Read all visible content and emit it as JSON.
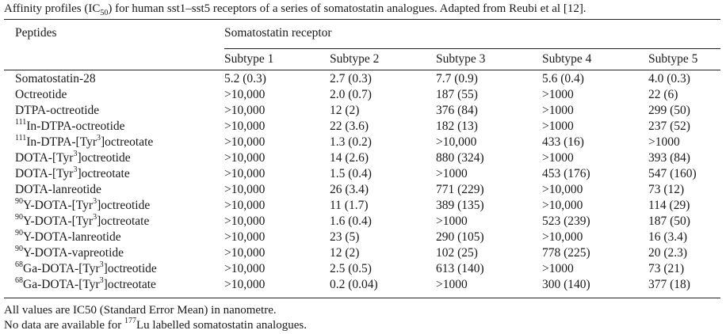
{
  "caption": {
    "prefix": "Affinity profiles (IC",
    "sub": "50",
    "suffix": ") for human sst1–sst5 receptors of a series of somatostatin analogues. Adapted from Reubi et al [12]."
  },
  "header": {
    "peptides": "Peptides",
    "group": "Somatostatin receptor",
    "subtypes": [
      "Subtype 1",
      "Subtype 2",
      "Subtype 3",
      "Subtype 4",
      "Subtype 5"
    ]
  },
  "rows": [
    {
      "name": [
        {
          "t": "Somatostatin-28"
        }
      ],
      "values": [
        "5.2 (0.3)",
        "2.7 (0.3)",
        "7.7 (0.9)",
        "5.6 (0.4)",
        "4.0 (0.3)"
      ]
    },
    {
      "name": [
        {
          "t": "Octreotide"
        }
      ],
      "values": [
        ">10,000",
        "2.0 (0.7)",
        "187 (55)",
        ">1000",
        "22 (6)"
      ]
    },
    {
      "name": [
        {
          "t": "DTPA-octreotide"
        }
      ],
      "values": [
        ">10,000",
        "12 (2)",
        "376 (84)",
        ">1000",
        "299 (50)"
      ]
    },
    {
      "name": [
        {
          "sup": "111"
        },
        {
          "t": "In-DTPA-octreotide"
        }
      ],
      "values": [
        ">10,000",
        "22 (3.6)",
        "182 (13)",
        ">1000",
        "237 (52)"
      ]
    },
    {
      "name": [
        {
          "sup": "111"
        },
        {
          "t": "In-DTPA-[Tyr"
        },
        {
          "sup": "3"
        },
        {
          "t": "]octreotate"
        }
      ],
      "values": [
        ">10,000",
        "1.3 (0.2)",
        ">10,000",
        "433 (16)",
        ">1000"
      ]
    },
    {
      "name": [
        {
          "t": "DOTA-[Tyr"
        },
        {
          "sup": "3"
        },
        {
          "t": "]octreotide"
        }
      ],
      "values": [
        ">10,000",
        "14 (2.6)",
        "880 (324)",
        ">1000",
        "393 (84)"
      ]
    },
    {
      "name": [
        {
          "t": "DOTA-[Tyr"
        },
        {
          "sup": "3"
        },
        {
          "t": "]octreotate"
        }
      ],
      "values": [
        ">10,000",
        "1.5 (0.4)",
        ">1000",
        "453 (176)",
        "547 (160)"
      ]
    },
    {
      "name": [
        {
          "t": "DOTA-lanreotide"
        }
      ],
      "values": [
        ">10,000",
        "26 (3.4)",
        "771 (229)",
        ">10,000",
        "73 (12)"
      ]
    },
    {
      "name": [
        {
          "sup": "90"
        },
        {
          "t": "Y-DOTA-[Tyr"
        },
        {
          "sup": "3"
        },
        {
          "t": "]octreotide"
        }
      ],
      "values": [
        ">10,000",
        "11 (1.7)",
        "389 (135)",
        ">10,000",
        "114 (29)"
      ]
    },
    {
      "name": [
        {
          "sup": "90"
        },
        {
          "t": "Y-DOTA-[Tyr"
        },
        {
          "sup": "3"
        },
        {
          "t": "]octreotate"
        }
      ],
      "values": [
        ">10,000",
        "1.6 (0.4)",
        ">1000",
        "523 (239)",
        "187 (50)"
      ]
    },
    {
      "name": [
        {
          "sup": "90"
        },
        {
          "t": "Y-DOTA-lanreotide"
        }
      ],
      "values": [
        ">10,000",
        "23 (5)",
        "290 (105)",
        ">10,000",
        "16 (3.4)"
      ]
    },
    {
      "name": [
        {
          "sup": "90"
        },
        {
          "t": "Y-DOTA-vapreotide"
        }
      ],
      "values": [
        ">10,000",
        "12 (2)",
        "102 (25)",
        "778 (225)",
        "20 (2.3)"
      ]
    },
    {
      "name": [
        {
          "sup": "68"
        },
        {
          "t": "Ga-DOTA-[Tyr"
        },
        {
          "sup": "3"
        },
        {
          "t": "]octreotide"
        }
      ],
      "values": [
        ">10,000",
        "2.5 (0.5)",
        "613 (140)",
        ">1000",
        "73 (21)"
      ]
    },
    {
      "name": [
        {
          "sup": "68"
        },
        {
          "t": "Ga-DOTA-[Tyr"
        },
        {
          "sup": "3"
        },
        {
          "t": "]octreotate"
        }
      ],
      "values": [
        ">10,000",
        "0.2 (0.04)",
        ">1000",
        "300 (140)",
        "377 (18)"
      ]
    }
  ],
  "notes": {
    "line1": "All values are IC50 (Standard Error Mean) in nanometre.",
    "line2_prefix": "No data are available for ",
    "line2_sup": "177",
    "line2_suffix": "Lu labelled somatostatin analogues."
  }
}
